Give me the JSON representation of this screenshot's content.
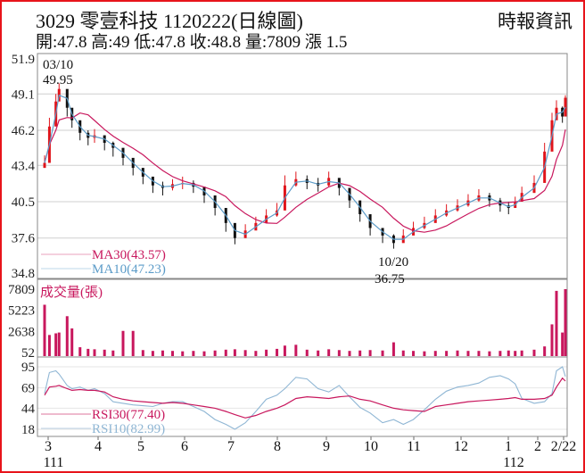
{
  "header": {
    "title": "3029  零壹科技 1120222(日線圖)",
    "source": "時報資訊",
    "ohlc": "開:47.8 高:49 低:47.8 收:48.8 量:7809 漲 1.5"
  },
  "chart_data": [
    {
      "type": "candlestick",
      "panel": "price",
      "y_ticks": [
        51.9,
        49.1,
        46.2,
        43.4,
        40.5,
        37.6,
        34.8
      ],
      "ylim": [
        34.8,
        51.9
      ],
      "grid": true,
      "annotations": [
        {
          "date": "03/10",
          "value": "49.95"
        },
        {
          "date": "10/20",
          "value": "36.75"
        }
      ],
      "legend": [
        {
          "label": "MA30(43.57)",
          "color": "#c8175d"
        },
        {
          "label": "MA10(47.23)",
          "color": "#5b9bc8"
        }
      ],
      "dates": [
        "2022-03-01",
        "2022-03-04",
        "2022-03-08",
        "2022-03-10",
        "2022-03-15",
        "2022-03-18",
        "2022-03-23",
        "2022-03-28",
        "2022-04-01",
        "2022-04-08",
        "2022-04-14",
        "2022-04-21",
        "2022-04-28",
        "2022-05-05",
        "2022-05-12",
        "2022-05-19",
        "2022-05-26",
        "2022-06-02",
        "2022-06-09",
        "2022-06-16",
        "2022-06-23",
        "2022-06-30",
        "2022-07-06",
        "2022-07-13",
        "2022-07-20",
        "2022-07-27",
        "2022-08-03",
        "2022-08-08",
        "2022-08-15",
        "2022-08-22",
        "2022-08-29",
        "2022-09-05",
        "2022-09-12",
        "2022-09-19",
        "2022-09-26",
        "2022-10-03",
        "2022-10-12",
        "2022-10-20",
        "2022-10-27",
        "2022-11-03",
        "2022-11-10",
        "2022-11-17",
        "2022-11-24",
        "2022-12-01",
        "2022-12-08",
        "2022-12-15",
        "2022-12-22",
        "2022-12-29",
        "2023-01-05",
        "2023-01-12",
        "2023-01-19",
        "2023-02-01",
        "2023-02-08",
        "2023-02-13",
        "2023-02-16",
        "2023-02-20",
        "2023-02-22"
      ],
      "close": [
        43.6,
        46.5,
        48.5,
        49.5,
        48.0,
        47.0,
        46.0,
        45.6,
        45.8,
        45.2,
        44.8,
        44.0,
        43.2,
        42.5,
        41.8,
        41.6,
        41.9,
        42.0,
        41.7,
        41.0,
        40.0,
        38.8,
        37.6,
        38.2,
        38.8,
        39.4,
        39.8,
        41.8,
        42.3,
        42.0,
        41.8,
        42.4,
        41.6,
        40.6,
        39.5,
        38.4,
        37.8,
        37.2,
        37.8,
        38.4,
        38.8,
        39.4,
        39.8,
        40.2,
        40.6,
        41.0,
        40.6,
        40.2,
        40.0,
        40.5,
        41.2,
        42.0,
        44.5,
        47.0,
        48.0,
        47.3,
        48.8
      ],
      "high": [
        44.2,
        47.2,
        49.1,
        49.95,
        48.8,
        47.6,
        46.6,
        46.2,
        46.3,
        45.8,
        45.3,
        44.6,
        43.8,
        43.0,
        42.4,
        42.1,
        42.3,
        42.5,
        42.2,
        41.6,
        40.8,
        39.6,
        38.3,
        38.7,
        39.3,
        39.9,
        40.4,
        42.6,
        42.9,
        42.6,
        42.4,
        42.9,
        42.2,
        41.3,
        40.2,
        39.1,
        38.4,
        37.9,
        38.3,
        38.9,
        39.3,
        39.9,
        40.3,
        40.7,
        41.1,
        41.5,
        41.2,
        40.8,
        40.5,
        40.9,
        41.7,
        42.6,
        45.2,
        47.6,
        48.6,
        48.1,
        49.0
      ],
      "low": [
        43.2,
        45.6,
        47.6,
        48.6,
        47.3,
        46.4,
        45.4,
        45.0,
        45.2,
        44.6,
        44.1,
        43.4,
        42.6,
        41.9,
        41.2,
        41.0,
        41.4,
        41.5,
        41.2,
        40.4,
        39.4,
        38.1,
        37.1,
        37.6,
        38.3,
        38.9,
        39.3,
        40.2,
        41.7,
        41.5,
        41.3,
        41.7,
        41.0,
        40.0,
        38.9,
        37.8,
        37.2,
        36.75,
        37.3,
        37.9,
        38.3,
        38.9,
        39.3,
        39.7,
        40.1,
        40.5,
        40.1,
        39.7,
        39.5,
        40.0,
        40.7,
        41.5,
        43.3,
        45.2,
        47.2,
        46.8,
        47.8
      ],
      "ma_windows": [
        10,
        30
      ],
      "volume_panel": {
        "label": "成交量(張)",
        "y_ticks": [
          7809,
          5223,
          2638,
          52
        ],
        "ylim": [
          52,
          7809
        ],
        "values": [
          5900,
          2200,
          2400,
          2500,
          4500,
          3000,
          700,
          500,
          450,
          400,
          300,
          2700,
          2700,
          350,
          250,
          300,
          250,
          200,
          250,
          200,
          300,
          400,
          450,
          350,
          250,
          400,
          500,
          900,
          1000,
          400,
          300,
          450,
          350,
          250,
          300,
          350,
          300,
          1300,
          300,
          250,
          200,
          250,
          250,
          300,
          250,
          250,
          200,
          250,
          300,
          250,
          300,
          400,
          800,
          3500,
          7600,
          2500,
          7809
        ]
      },
      "rsi_panel": {
        "y_ticks": [
          95,
          69,
          44,
          18
        ],
        "ylim": [
          18,
          95
        ],
        "legend": [
          {
            "label": "RSI30(77.40)",
            "color": "#c8175d"
          },
          {
            "label": "RSI10(82.99)",
            "color": "#8fb6d4"
          }
        ],
        "rsi30": [
          60,
          70,
          71,
          72,
          68,
          66,
          67,
          66,
          66,
          64,
          58,
          55,
          53,
          52,
          51,
          50,
          51,
          50,
          48,
          46,
          44,
          40,
          36,
          32,
          35,
          40,
          44,
          48,
          56,
          58,
          57,
          56,
          58,
          59,
          55,
          53,
          48,
          44,
          42,
          41,
          40,
          46,
          48,
          50,
          52,
          53,
          54,
          55,
          56,
          57,
          55,
          55,
          56,
          60,
          70,
          81,
          77.4
        ],
        "rsi10": [
          62,
          88,
          90,
          86,
          72,
          68,
          70,
          66,
          68,
          62,
          52,
          50,
          48,
          47,
          46,
          50,
          52,
          52,
          46,
          40,
          30,
          24,
          18,
          26,
          40,
          55,
          60,
          68,
          82,
          80,
          68,
          64,
          72,
          58,
          45,
          38,
          26,
          30,
          24,
          30,
          42,
          55,
          65,
          70,
          72,
          75,
          82,
          84,
          80,
          74,
          56,
          50,
          52,
          62,
          90,
          95,
          82.99
        ]
      },
      "x_ticks": [
        "3",
        "4",
        "5",
        "6",
        "7",
        "8",
        "9",
        "10",
        "11",
        "12",
        "1",
        "2",
        "2/22"
      ],
      "x_year_labels": [
        {
          "label": "111",
          "under": "3"
        },
        {
          "label": "112",
          "under": "1"
        }
      ],
      "colors": {
        "up": "#e0141b",
        "down": "#111111",
        "volume": "#c8175d",
        "grid": "#cfcfcf"
      }
    }
  ]
}
